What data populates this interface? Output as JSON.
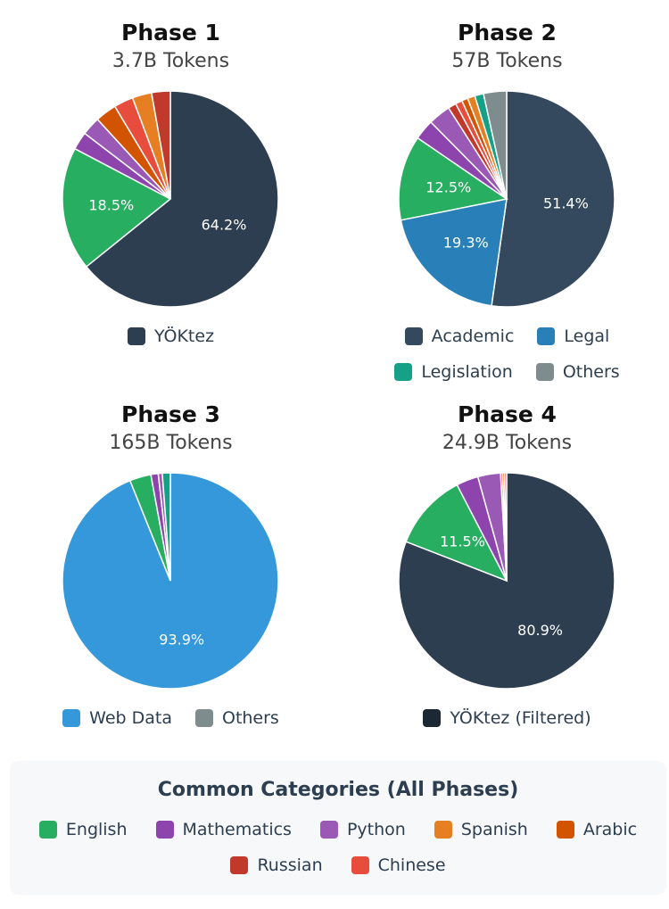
{
  "phases": [
    {
      "title": "Phase 1",
      "subtitle": "3.7B Tokens",
      "slices": [
        {
          "name": "YÖKtez",
          "value": 64.2,
          "color": "#2c3e50",
          "label": "64.2%"
        },
        {
          "name": "English",
          "value": 18.5,
          "color": "#27ae60",
          "label": "18.5%"
        },
        {
          "name": "Mathematics",
          "value": 2.7,
          "color": "#8e44ad",
          "label": ""
        },
        {
          "name": "Python",
          "value": 2.8,
          "color": "#9b59b6",
          "label": ""
        },
        {
          "name": "Arabic",
          "value": 3.2,
          "color": "#d35400",
          "label": ""
        },
        {
          "name": "Chinese",
          "value": 2.9,
          "color": "#e74c3c",
          "label": ""
        },
        {
          "name": "Spanish",
          "value": 2.9,
          "color": "#e67e22",
          "label": ""
        },
        {
          "name": "Russian",
          "value": 2.8,
          "color": "#c0392b",
          "label": ""
        }
      ],
      "legend": [
        {
          "label": "YÖKtez",
          "color": "#2c3e50"
        }
      ]
    },
    {
      "title": "Phase 2",
      "subtitle": "57B Tokens",
      "slices": [
        {
          "name": "Academic",
          "value": 51.4,
          "color": "#34495e",
          "label": "51.4%"
        },
        {
          "name": "Legal",
          "value": 19.3,
          "color": "#2980b9",
          "label": "19.3%"
        },
        {
          "name": "English",
          "value": 12.5,
          "color": "#27ae60",
          "label": "12.5%"
        },
        {
          "name": "Mathematics",
          "value": 3.0,
          "color": "#8e44ad",
          "label": ""
        },
        {
          "name": "Python",
          "value": 3.3,
          "color": "#9b59b6",
          "label": ""
        },
        {
          "name": "Russian",
          "value": 1.2,
          "color": "#c0392b",
          "label": ""
        },
        {
          "name": "Chinese",
          "value": 1.0,
          "color": "#e74c3c",
          "label": ""
        },
        {
          "name": "Arabic",
          "value": 0.9,
          "color": "#d35400",
          "label": ""
        },
        {
          "name": "Spanish",
          "value": 1.1,
          "color": "#e67e22",
          "label": ""
        },
        {
          "name": "Legislation",
          "value": 1.3,
          "color": "#16a085",
          "label": ""
        },
        {
          "name": "Others",
          "value": 3.4,
          "color": "#7f8c8d",
          "label": ""
        }
      ],
      "legend": [
        {
          "label": "Academic",
          "color": "#34495e"
        },
        {
          "label": "Legal",
          "color": "#2980b9"
        },
        {
          "label": "Legislation",
          "color": "#16a085"
        },
        {
          "label": "Others",
          "color": "#7f8c8d"
        }
      ]
    },
    {
      "title": "Phase 3",
      "subtitle": "165B Tokens",
      "slices": [
        {
          "name": "Web Data",
          "value": 93.9,
          "color": "#3498db",
          "label": "93.9%"
        },
        {
          "name": "English",
          "value": 3.2,
          "color": "#27ae60",
          "label": ""
        },
        {
          "name": "Mathematics",
          "value": 1.1,
          "color": "#8e44ad",
          "label": ""
        },
        {
          "name": "Python",
          "value": 0.6,
          "color": "#9b59b6",
          "label": ""
        },
        {
          "name": "Others",
          "value": 1.2,
          "color": "#16a085",
          "label": ""
        }
      ],
      "legend": [
        {
          "label": "Web Data",
          "color": "#3498db"
        },
        {
          "label": "Others",
          "color": "#7f8c8d"
        }
      ]
    },
    {
      "title": "Phase 4",
      "subtitle": "24.9B Tokens",
      "slices": [
        {
          "name": "YÖKtez (Filtered)",
          "value": 80.9,
          "color": "#2c3e50",
          "label": "80.9%"
        },
        {
          "name": "English",
          "value": 11.5,
          "color": "#27ae60",
          "label": "11.5%"
        },
        {
          "name": "Mathematics",
          "value": 3.3,
          "color": "#8e44ad",
          "label": ""
        },
        {
          "name": "Python",
          "value": 3.4,
          "color": "#9b59b6",
          "label": ""
        },
        {
          "name": "Chinese",
          "value": 0.3,
          "color": "#e74c3c",
          "label": ""
        },
        {
          "name": "Spanish",
          "value": 0.3,
          "color": "#e67e22",
          "label": ""
        },
        {
          "name": "Russian",
          "value": 0.3,
          "color": "#c0392b",
          "label": ""
        }
      ],
      "legend": [
        {
          "label": "YÖKtez (Filtered)",
          "color": "#1c2833"
        }
      ]
    }
  ],
  "common": {
    "title": "Common Categories (All Phases)",
    "items": [
      {
        "label": "English",
        "color": "#27ae60"
      },
      {
        "label": "Mathematics",
        "color": "#8e44ad"
      },
      {
        "label": "Python",
        "color": "#9b59b6"
      },
      {
        "label": "Spanish",
        "color": "#e67e22"
      },
      {
        "label": "Arabic",
        "color": "#d35400"
      },
      {
        "label": "Russian",
        "color": "#c0392b"
      },
      {
        "label": "Chinese",
        "color": "#e74c3c"
      }
    ]
  },
  "chart_data": [
    {
      "type": "pie",
      "title": "Phase 1",
      "subtitle": "3.7B Tokens",
      "categories": [
        "YÖKtez",
        "English",
        "Mathematics",
        "Python",
        "Arabic",
        "Chinese",
        "Spanish",
        "Russian"
      ],
      "values": [
        64.2,
        18.5,
        2.7,
        2.8,
        3.2,
        2.9,
        2.9,
        2.8
      ],
      "legend": [
        "YÖKtez"
      ]
    },
    {
      "type": "pie",
      "title": "Phase 2",
      "subtitle": "57B Tokens",
      "categories": [
        "Academic",
        "Legal",
        "English",
        "Mathematics",
        "Python",
        "Russian",
        "Chinese",
        "Arabic",
        "Spanish",
        "Legislation",
        "Others"
      ],
      "values": [
        51.4,
        19.3,
        12.5,
        3.0,
        3.3,
        1.2,
        1.0,
        0.9,
        1.1,
        1.3,
        3.4
      ],
      "legend": [
        "Academic",
        "Legal",
        "Legislation",
        "Others"
      ]
    },
    {
      "type": "pie",
      "title": "Phase 3",
      "subtitle": "165B Tokens",
      "categories": [
        "Web Data",
        "English",
        "Mathematics",
        "Python",
        "Others"
      ],
      "values": [
        93.9,
        3.2,
        1.1,
        0.6,
        1.2
      ],
      "legend": [
        "Web Data",
        "Others"
      ]
    },
    {
      "type": "pie",
      "title": "Phase 4",
      "subtitle": "24.9B Tokens",
      "categories": [
        "YÖKtez (Filtered)",
        "English",
        "Mathematics",
        "Python",
        "Chinese",
        "Spanish",
        "Russian"
      ],
      "values": [
        80.9,
        11.5,
        3.3,
        3.4,
        0.3,
        0.3,
        0.3
      ],
      "legend": [
        "YÖKtez (Filtered)"
      ]
    }
  ]
}
